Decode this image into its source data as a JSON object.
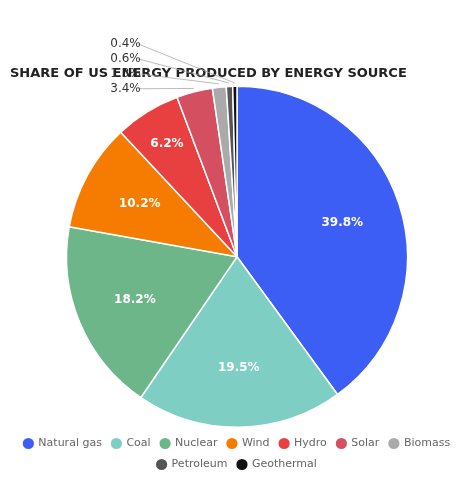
{
  "chart_data": {
    "type": "pie",
    "title": "SHARE OF US ENERGY PRODUCED BY ENERGY SOURCE",
    "categories": [
      "Natural gas",
      "Coal",
      "Nuclear",
      "Wind",
      "Hydro",
      "Solar",
      "Biomass",
      "Petroleum",
      "Geothermal"
    ],
    "values": [
      39.8,
      19.5,
      18.2,
      10.2,
      6.2,
      3.4,
      1.3,
      0.6,
      0.4
    ],
    "value_labels": [
      "39.8%",
      "19.5%",
      "18.2%",
      "10.2%",
      "6.2%",
      "3.4%",
      "1.3%",
      "0.6%",
      "0.4%"
    ],
    "colors": [
      "#3d5ef5",
      "#7ecec4",
      "#6db68a",
      "#f57c00",
      "#e84040",
      "#d45060",
      "#aaaaaa",
      "#555555",
      "#111111"
    ],
    "data_labels": true,
    "legend": "bottom"
  }
}
